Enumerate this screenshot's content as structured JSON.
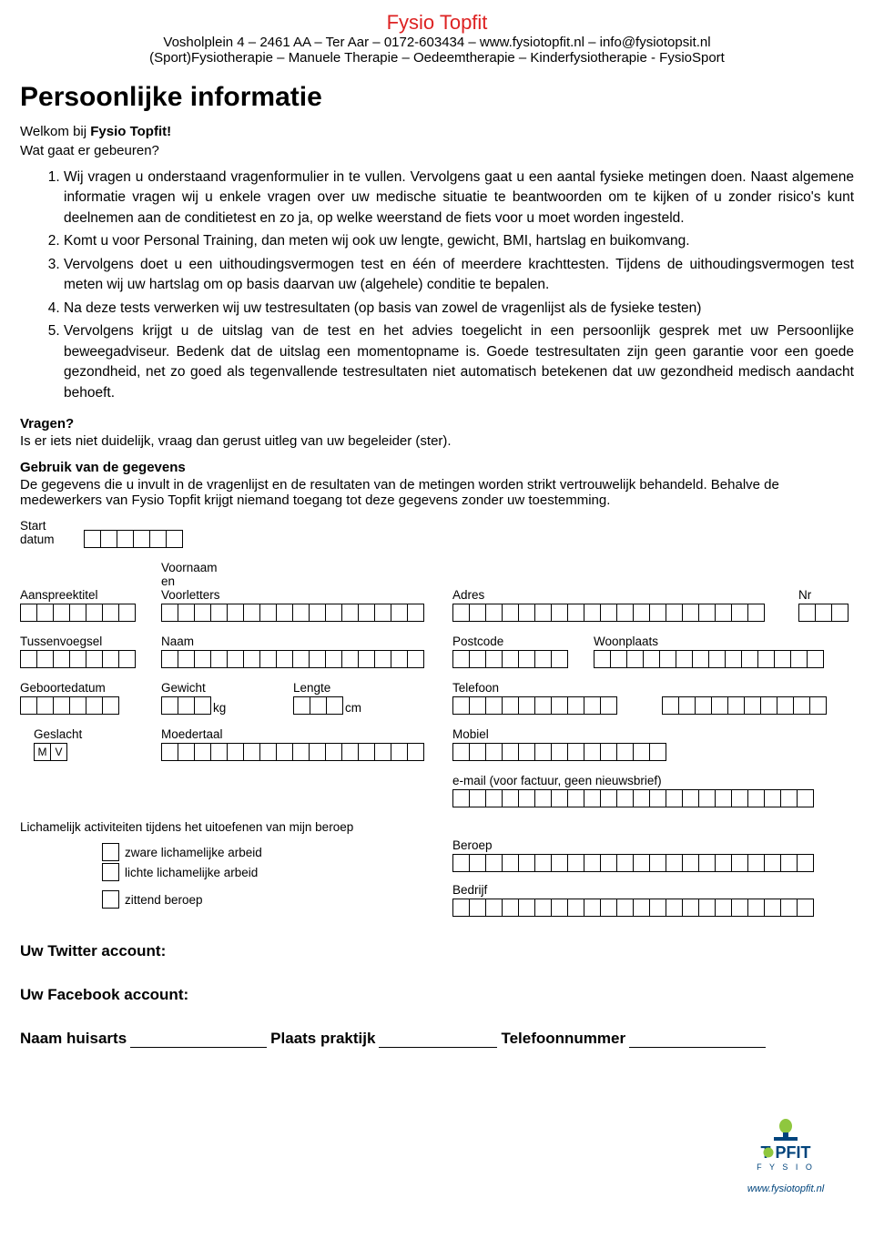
{
  "header": {
    "brand": "Fysio Topfit",
    "line1": "Vosholplein 4 – 2461 AA – Ter Aar – 0172-603434 – www.fysiotopfit.nl – info@fysiotopsit.nl",
    "line2": "(Sport)Fysiotherapie – Manuele Therapie – Oedeemtherapie – Kinderfysiotherapie - FysioSport"
  },
  "title": "Persoonlijke informatie",
  "intro": {
    "welcome_prefix": "Welkom bij ",
    "welcome_brand": "Fysio Topfit!",
    "what": "Wat gaat er gebeuren?"
  },
  "steps": [
    "Wij vragen u onderstaand vragenformulier in te vullen. Vervolgens gaat u een aantal fysieke metingen doen. Naast algemene informatie vragen wij u enkele vragen over uw medische situatie te beantwoorden om te kijken of u zonder risico's kunt deelnemen aan de conditietest en zo ja, op welke weerstand de fiets voor u moet worden ingesteld.",
    "Komt u voor Personal Training, dan meten wij ook uw lengte, gewicht, BMI, hartslag en buikomvang.",
    "Vervolgens doet u een uithoudingsvermogen test en één of meerdere krachttesten. Tijdens de uithoudingsvermogen test meten wij uw hartslag om op basis daarvan uw (algehele) conditie te bepalen.",
    "Na deze tests verwerken wij uw testresultaten (op basis van zowel de vragenlijst als de fysieke testen)",
    "Vervolgens krijgt u de uitslag van de test en het advies toegelicht in een persoonlijk gesprek met uw Persoonlijke beweegadviseur. Bedenk dat de uitslag een momentopname is. Goede testresultaten zijn geen garantie voor een goede gezondheid, net zo goed als tegenvallende testresultaten niet automatisch betekenen dat uw gezondheid medisch aandacht behoeft."
  ],
  "sections": {
    "q_head": "Vragen?",
    "q_body": "Is er iets niet duidelijk, vraag dan gerust uitleg van uw begeleider (ster).",
    "use_head": "Gebruik van de gegevens",
    "use_body": "De gegevens die u invult in de vragenlijst en de resultaten van de metingen worden strikt vertrouwelijk behandeld. Behalve de medewerkers van Fysio Topfit krijgt niemand toegang tot deze gegevens zonder uw toestemming."
  },
  "labels": {
    "start_datum": "Start\ndatum",
    "aanspreektitel": "Aanspreektitel",
    "voornaam": "Voornaam\nen\nVoorletters",
    "adres": "Adres",
    "nr": "Nr",
    "tussenvoegsel": "Tussenvoegsel",
    "naam": "Naam",
    "postcode": "Postcode",
    "woonplaats": "Woonplaats",
    "geboortedatum": "Geboortedatum",
    "gewicht": "Gewicht",
    "kg": "kg",
    "lengte": "Lengte",
    "cm": "cm",
    "telefoon": "Telefoon",
    "geslacht": "Geslacht",
    "m": "M",
    "v": "V",
    "moedertaal": "Moedertaal",
    "mobiel": "Mobiel",
    "email": "e-mail (voor factuur, geen nieuwsbrief)",
    "lich_act": "Lichamelijk activiteiten tijdens het uitoefenen van mijn beroep",
    "zware": "zware lichamelijke arbeid",
    "lichte": "lichte lichamelijke arbeid",
    "zittend": "zittend beroep",
    "beroep": "Beroep",
    "bedrijf": "Bedrijf",
    "twitter": "Uw Twitter account:",
    "facebook": "Uw Facebook account:",
    "huisarts": "Naam huisarts",
    "plaats": "Plaats praktijk",
    "telefoonnummer": "Telefoonnummer"
  },
  "logo": {
    "name_top": "T   PFIT",
    "name_sub": "F   Y   S   I   O",
    "url": "www.fysiotopfit.nl",
    "bulb_color": "#8fc73e",
    "text_color": "#00447c"
  }
}
